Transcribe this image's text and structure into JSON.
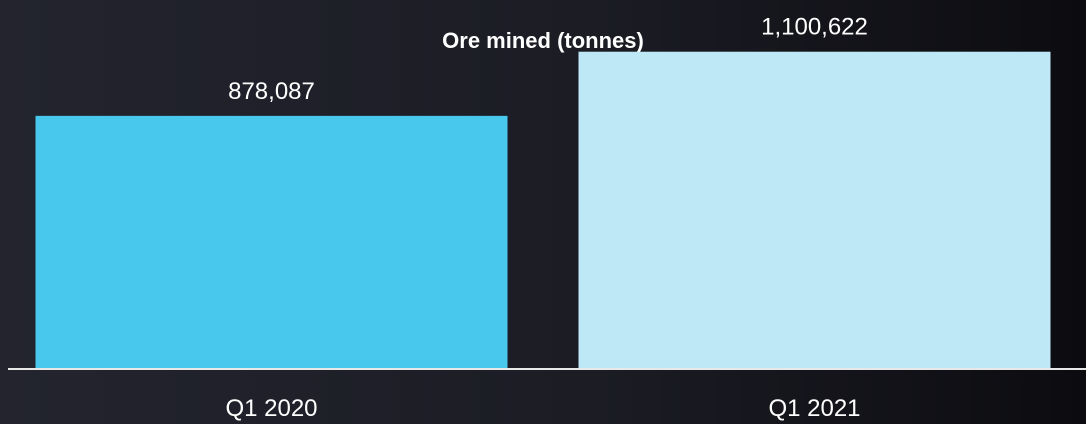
{
  "chart_data": {
    "type": "bar",
    "title": "Ore mined (tonnes)",
    "categories": [
      "Q1 2020",
      "Q1 2021"
    ],
    "values": [
      878087,
      1100622
    ],
    "value_labels": [
      "878,087",
      "1,100,622"
    ],
    "colors": [
      "#49c8ee",
      "#bfe8f7"
    ],
    "axis_color": "#e8e8e8",
    "text_color": "#ffffff",
    "xlabel": "",
    "ylabel": "",
    "ylim": [
      0,
      1280000
    ],
    "grid": false,
    "legend": "none"
  }
}
